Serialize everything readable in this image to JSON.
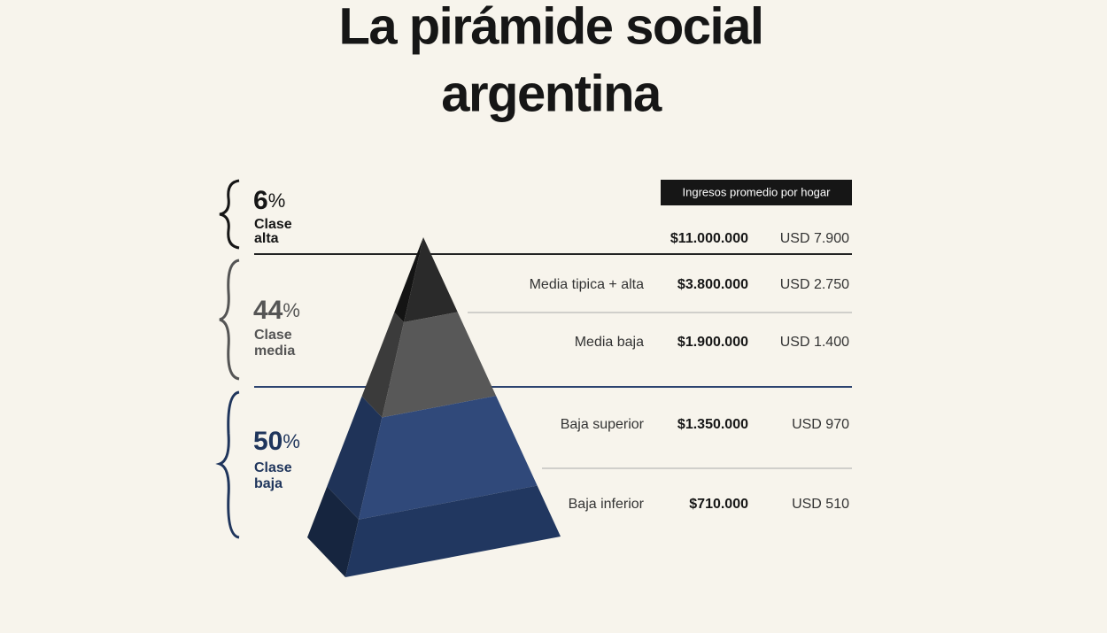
{
  "header": {
    "title": [
      "La pirámide social",
      "argentina"
    ],
    "table_header": "Ingresos promedio por hogar"
  },
  "groups": [
    {
      "percent": "6",
      "unit": "%",
      "label": [
        "Clase",
        "alta"
      ]
    },
    {
      "percent": "44",
      "unit": "%",
      "label": [
        "Clase",
        "media"
      ]
    },
    {
      "percent": "50",
      "unit": "%",
      "label": [
        "Clase",
        "baja"
      ]
    }
  ],
  "rows": [
    {
      "pesos": "$11.000.000",
      "usd": "USD 7.900"
    },
    {
      "name": "Media tipica + alta",
      "pesos": "$3.800.000",
      "usd": "USD 2.750"
    },
    {
      "name": "Media baja",
      "pesos": "$1.900.000",
      "usd": "USD 1.400"
    },
    {
      "name": "Baja superior",
      "pesos": "$1.350.000",
      "usd": "USD 970"
    },
    {
      "name": "Baja inferior",
      "pesos": "$710.000",
      "usd": "USD 510"
    }
  ]
}
